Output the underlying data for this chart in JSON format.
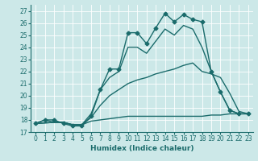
{
  "xlabel": "Humidex (Indice chaleur)",
  "bg_color": "#cce8e8",
  "line_color": "#1a6b6b",
  "grid_color": "#b0d4d4",
  "xlim": [
    -0.5,
    23.5
  ],
  "ylim": [
    17.0,
    27.5
  ],
  "xticks": [
    0,
    1,
    2,
    3,
    4,
    5,
    6,
    7,
    8,
    9,
    10,
    11,
    12,
    13,
    14,
    15,
    16,
    17,
    18,
    19,
    20,
    21,
    22,
    23
  ],
  "yticks": [
    17,
    18,
    19,
    20,
    21,
    22,
    23,
    24,
    25,
    26,
    27
  ],
  "series": [
    {
      "x": [
        0,
        1,
        2,
        3,
        4,
        5,
        6,
        7,
        8,
        9,
        10,
        11,
        12,
        13,
        14,
        15,
        16,
        17,
        18,
        19,
        20,
        21,
        22,
        23
      ],
      "y": [
        17.7,
        18.0,
        18.0,
        17.7,
        17.5,
        17.5,
        18.3,
        20.5,
        22.2,
        22.2,
        25.2,
        25.2,
        24.3,
        25.6,
        26.8,
        26.1,
        26.7,
        26.3,
        26.1,
        22.0,
        20.3,
        18.8,
        18.5,
        18.5
      ],
      "marker": "D",
      "ms": 2.5,
      "lw": 1.0
    },
    {
      "x": [
        0,
        2,
        3,
        4,
        5,
        6,
        7,
        8,
        9,
        10,
        11,
        12,
        13,
        14,
        15,
        16,
        17,
        18,
        19,
        20,
        21,
        22
      ],
      "y": [
        17.7,
        17.8,
        17.8,
        17.6,
        17.6,
        18.5,
        20.5,
        21.5,
        22.0,
        24.0,
        24.0,
        23.5,
        24.5,
        25.5,
        25.0,
        25.8,
        25.5,
        24.0,
        22.0,
        20.3,
        18.8,
        18.5
      ],
      "marker": null,
      "ms": 0,
      "lw": 1.0
    },
    {
      "x": [
        0,
        2,
        3,
        4,
        5,
        6,
        7,
        8,
        9,
        10,
        11,
        12,
        13,
        14,
        15,
        16,
        17,
        18,
        19,
        20,
        21,
        22,
        23
      ],
      "y": [
        17.7,
        17.8,
        17.8,
        17.6,
        17.6,
        18.2,
        19.2,
        20.0,
        20.5,
        21.0,
        21.3,
        21.5,
        21.8,
        22.0,
        22.2,
        22.5,
        22.7,
        22.0,
        21.8,
        21.5,
        20.2,
        18.7,
        18.5
      ],
      "marker": null,
      "ms": 0,
      "lw": 1.0
    },
    {
      "x": [
        0,
        1,
        2,
        3,
        4,
        5,
        6,
        7,
        8,
        9,
        10,
        11,
        12,
        13,
        14,
        15,
        16,
        17,
        18,
        19,
        20,
        21,
        22,
        23
      ],
      "y": [
        17.7,
        18.0,
        17.8,
        17.8,
        17.6,
        17.6,
        17.9,
        18.0,
        18.1,
        18.2,
        18.3,
        18.3,
        18.3,
        18.3,
        18.3,
        18.3,
        18.3,
        18.3,
        18.3,
        18.4,
        18.4,
        18.5,
        18.5,
        18.5
      ],
      "marker": null,
      "ms": 0,
      "lw": 1.0
    }
  ]
}
